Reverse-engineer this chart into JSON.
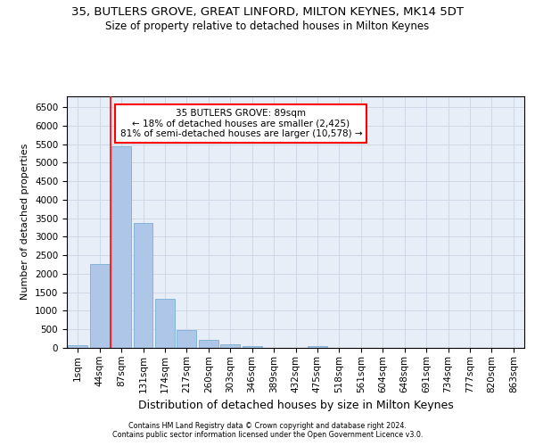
{
  "title1": "35, BUTLERS GROVE, GREAT LINFORD, MILTON KEYNES, MK14 5DT",
  "title2": "Size of property relative to detached houses in Milton Keynes",
  "xlabel": "Distribution of detached houses by size in Milton Keynes",
  "ylabel": "Number of detached properties",
  "bar_labels": [
    "1sqm",
    "44sqm",
    "87sqm",
    "131sqm",
    "174sqm",
    "217sqm",
    "260sqm",
    "303sqm",
    "346sqm",
    "389sqm",
    "432sqm",
    "475sqm",
    "518sqm",
    "561sqm",
    "604sqm",
    "648sqm",
    "691sqm",
    "734sqm",
    "777sqm",
    "820sqm",
    "863sqm"
  ],
  "bar_values": [
    65,
    2270,
    5450,
    3370,
    1320,
    480,
    210,
    95,
    60,
    0,
    0,
    60,
    0,
    0,
    0,
    0,
    0,
    0,
    0,
    0,
    0
  ],
  "bar_color": "#aec6e8",
  "bar_edge_color": "#7bafd4",
  "grid_color": "#d0d8e8",
  "background_color": "#e8eef8",
  "annotation_text": "35 BUTLERS GROVE: 89sqm\n← 18% of detached houses are smaller (2,425)\n81% of semi-detached houses are larger (10,578) →",
  "annotation_box_color": "white",
  "annotation_box_edge_color": "red",
  "vline_bar_index": 2,
  "vline_color": "red",
  "ylim": [
    0,
    6800
  ],
  "yticks": [
    0,
    500,
    1000,
    1500,
    2000,
    2500,
    3000,
    3500,
    4000,
    4500,
    5000,
    5500,
    6000,
    6500
  ],
  "footer_line1": "Contains HM Land Registry data © Crown copyright and database right 2024.",
  "footer_line2": "Contains public sector information licensed under the Open Government Licence v3.0.",
  "title1_fontsize": 9.5,
  "title2_fontsize": 8.5,
  "ylabel_fontsize": 8,
  "xlabel_fontsize": 9,
  "tick_fontsize": 7.5,
  "annotation_fontsize": 7.5,
  "footer_fontsize": 5.8
}
